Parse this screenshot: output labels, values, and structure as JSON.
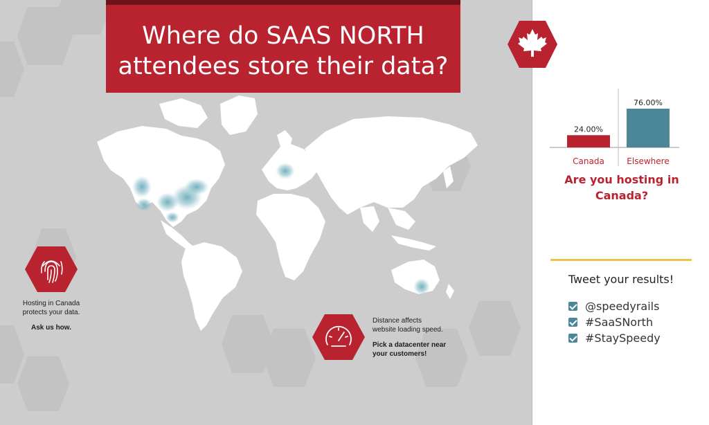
{
  "title": "Where do SAAS NORTH attendees store their data?",
  "callouts": {
    "security": {
      "line1": "Hosting in Canada",
      "line2": "protects your data.",
      "cta": "Ask us how."
    },
    "speed": {
      "line1": "Distance affects",
      "line2": "website loading speed.",
      "cta1": "Pick a datacenter near",
      "cta2": "your customers!"
    }
  },
  "chart_data": {
    "type": "bar",
    "categories": [
      "Canada",
      "Elsewhere"
    ],
    "values": [
      24.0,
      76.0
    ],
    "value_labels": [
      "24.00%",
      "76.00%"
    ],
    "colors": [
      "#b8232f",
      "#4a8799"
    ],
    "ylim": [
      0,
      100
    ],
    "title": "Are you hosting in Canada?"
  },
  "tweet": {
    "heading": "Tweet your results!",
    "tags": [
      "@speedyrails",
      "#SaaSNorth",
      "#StaySpeedy"
    ]
  },
  "icons": {
    "flag": "maple-leaf-icon",
    "security": "fingerprint-icon",
    "speed": "speedometer-icon"
  },
  "colors": {
    "brand_red": "#b8232f",
    "accent_teal": "#4a8799",
    "rule_yellow": "#f0c24a"
  }
}
